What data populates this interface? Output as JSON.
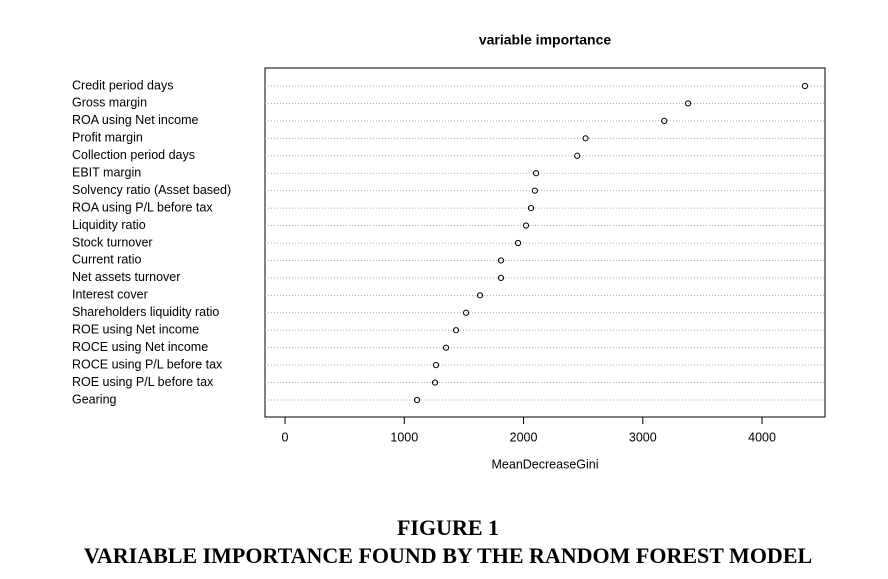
{
  "chart_data": {
    "type": "dot",
    "title": "variable importance",
    "xlabel": "MeanDecreaseGini",
    "categories": [
      "Credit period days",
      "Gross margin",
      "ROA using Net income",
      "Profit margin",
      "Collection period days",
      "EBIT margin",
      "Solvency ratio (Asset based)",
      "ROA using P/L before tax",
      "Liquidity ratio",
      "Stock turnover",
      "Current ratio",
      "Net assets turnover",
      "Interest cover",
      "Shareholders liquidity ratio",
      "ROE using Net income",
      "ROCE using Net income",
      "ROCE using P/L before tax",
      "ROE using P/L before tax",
      "Gearing"
    ],
    "values": [
      4360,
      3380,
      3180,
      2520,
      2450,
      2105,
      2095,
      2063,
      2021,
      1954,
      1811,
      1811,
      1635,
      1518,
      1434,
      1350,
      1266,
      1258,
      1107
    ],
    "xlim": [
      -168,
      4528
    ],
    "xticks": [
      0,
      1000,
      2000,
      3000,
      4000
    ],
    "grid": true
  },
  "caption": {
    "label": "FIGURE 1",
    "text": "VARIABLE IMPORTANCE FOUND BY THE RANDOM FOREST MODEL"
  }
}
